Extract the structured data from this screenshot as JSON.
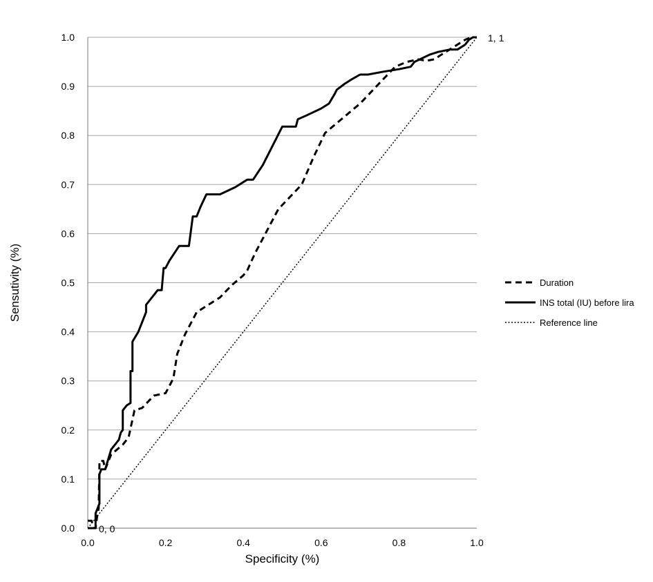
{
  "chart_data": {
    "type": "line",
    "title": "",
    "xlabel": "Specificity (%)",
    "ylabel": "Sensutivity (%)",
    "xlim": [
      0,
      1
    ],
    "ylim": [
      0,
      1
    ],
    "x_ticks": [
      "0.0",
      "0.2",
      "0.4",
      "0.6",
      "0.8",
      "1.0"
    ],
    "y_ticks": [
      "0.0",
      "0.1",
      "0.2",
      "0.3",
      "0.4",
      "0.5",
      "0.6",
      "0.7",
      "0.8",
      "0.9",
      "1.0"
    ],
    "grid": "horizontal",
    "legend_position": "right",
    "annotations": {
      "origin_label": "0, 0",
      "end_label": "1, 1"
    },
    "series": [
      {
        "name": "Duration",
        "style": "dashed",
        "color": "#000000",
        "points": [
          [
            0.0,
            0.015
          ],
          [
            0.01,
            0.015
          ],
          [
            0.015,
            0.0
          ],
          [
            0.02,
            0.0
          ],
          [
            0.025,
            0.03
          ],
          [
            0.028,
            0.04
          ],
          [
            0.03,
            0.13
          ],
          [
            0.03,
            0.137
          ],
          [
            0.04,
            0.137
          ],
          [
            0.045,
            0.12
          ],
          [
            0.06,
            0.15
          ],
          [
            0.09,
            0.17
          ],
          [
            0.105,
            0.185
          ],
          [
            0.12,
            0.24
          ],
          [
            0.14,
            0.245
          ],
          [
            0.17,
            0.27
          ],
          [
            0.2,
            0.275
          ],
          [
            0.22,
            0.305
          ],
          [
            0.23,
            0.355
          ],
          [
            0.25,
            0.395
          ],
          [
            0.28,
            0.44
          ],
          [
            0.31,
            0.455
          ],
          [
            0.34,
            0.47
          ],
          [
            0.37,
            0.495
          ],
          [
            0.4,
            0.515
          ],
          [
            0.41,
            0.525
          ],
          [
            0.43,
            0.56
          ],
          [
            0.46,
            0.605
          ],
          [
            0.49,
            0.65
          ],
          [
            0.52,
            0.675
          ],
          [
            0.55,
            0.7
          ],
          [
            0.58,
            0.755
          ],
          [
            0.61,
            0.805
          ],
          [
            0.64,
            0.825
          ],
          [
            0.67,
            0.845
          ],
          [
            0.7,
            0.865
          ],
          [
            0.73,
            0.89
          ],
          [
            0.76,
            0.915
          ],
          [
            0.79,
            0.94
          ],
          [
            0.82,
            0.95
          ],
          [
            0.85,
            0.955
          ],
          [
            0.87,
            0.952
          ],
          [
            0.89,
            0.955
          ],
          [
            0.91,
            0.965
          ],
          [
            0.93,
            0.975
          ],
          [
            0.95,
            0.985
          ],
          [
            0.97,
            0.995
          ],
          [
            0.985,
            1.0
          ],
          [
            1.0,
            1.0
          ]
        ]
      },
      {
        "name": "INS total (IU) before lira",
        "style": "solid",
        "color": "#000000",
        "points": [
          [
            0.0,
            0.0
          ],
          [
            0.02,
            0.0
          ],
          [
            0.02,
            0.03
          ],
          [
            0.025,
            0.04
          ],
          [
            0.03,
            0.05
          ],
          [
            0.03,
            0.11
          ],
          [
            0.035,
            0.12
          ],
          [
            0.045,
            0.12
          ],
          [
            0.06,
            0.16
          ],
          [
            0.07,
            0.17
          ],
          [
            0.08,
            0.18
          ],
          [
            0.085,
            0.195
          ],
          [
            0.09,
            0.2
          ],
          [
            0.09,
            0.24
          ],
          [
            0.1,
            0.25
          ],
          [
            0.11,
            0.255
          ],
          [
            0.11,
            0.32
          ],
          [
            0.115,
            0.32
          ],
          [
            0.115,
            0.38
          ],
          [
            0.13,
            0.4
          ],
          [
            0.15,
            0.44
          ],
          [
            0.15,
            0.455
          ],
          [
            0.17,
            0.475
          ],
          [
            0.18,
            0.485
          ],
          [
            0.19,
            0.485
          ],
          [
            0.195,
            0.53
          ],
          [
            0.2,
            0.53
          ],
          [
            0.21,
            0.545
          ],
          [
            0.235,
            0.575
          ],
          [
            0.26,
            0.575
          ],
          [
            0.27,
            0.635
          ],
          [
            0.28,
            0.635
          ],
          [
            0.29,
            0.655
          ],
          [
            0.305,
            0.68
          ],
          [
            0.34,
            0.68
          ],
          [
            0.38,
            0.695
          ],
          [
            0.41,
            0.71
          ],
          [
            0.425,
            0.71
          ],
          [
            0.45,
            0.74
          ],
          [
            0.5,
            0.818
          ],
          [
            0.535,
            0.818
          ],
          [
            0.54,
            0.833
          ],
          [
            0.56,
            0.84
          ],
          [
            0.6,
            0.855
          ],
          [
            0.62,
            0.865
          ],
          [
            0.635,
            0.885
          ],
          [
            0.64,
            0.893
          ],
          [
            0.66,
            0.905
          ],
          [
            0.68,
            0.915
          ],
          [
            0.7,
            0.924
          ],
          [
            0.72,
            0.924
          ],
          [
            0.76,
            0.93
          ],
          [
            0.8,
            0.935
          ],
          [
            0.83,
            0.94
          ],
          [
            0.84,
            0.95
          ],
          [
            0.88,
            0.965
          ],
          [
            0.9,
            0.97
          ],
          [
            0.93,
            0.975
          ],
          [
            0.95,
            0.975
          ],
          [
            0.97,
            0.985
          ],
          [
            0.98,
            0.995
          ],
          [
            0.99,
            1.0
          ],
          [
            1.0,
            1.0
          ]
        ]
      },
      {
        "name": "Reference line",
        "style": "dotted",
        "color": "#000000",
        "points": [
          [
            0.0,
            0.0
          ],
          [
            1.0,
            1.0
          ]
        ]
      }
    ]
  }
}
